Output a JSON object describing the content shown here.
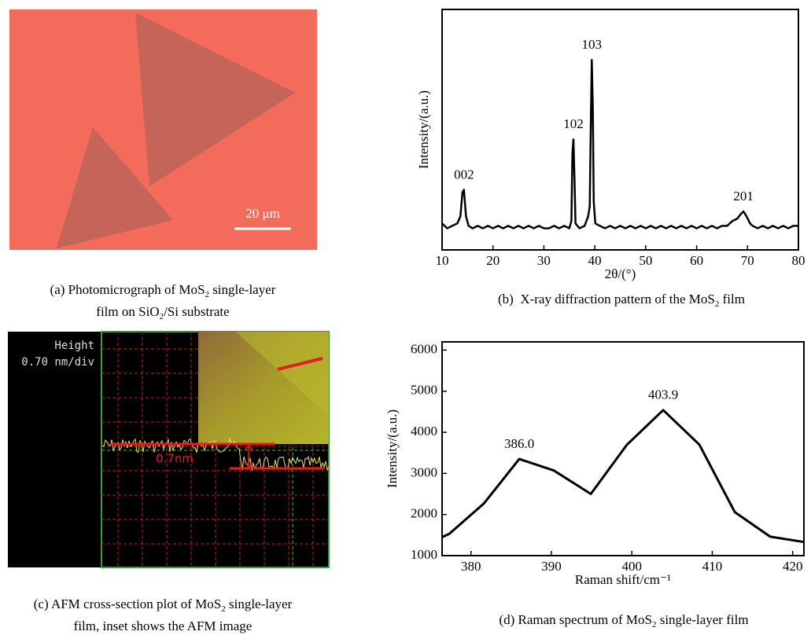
{
  "panel_a": {
    "scale_bar": "20 μm",
    "caption": [
      [
        "(a) Photomicrograph of MoS",
        "2",
        " single-layer"
      ],
      [
        "film on SiO",
        "2",
        "/Si substrate"
      ]
    ]
  },
  "panel_c": {
    "height_label": "Height",
    "scale_label": "0.70 nm/div",
    "step_label": "0.7nm",
    "caption": [
      [
        "(c) AFM cross-section plot of MoS",
        "2",
        " single-layer"
      ],
      [
        "film, inset shows the AFM image"
      ]
    ]
  },
  "chart_data": [
    {
      "type": "line",
      "color": "#000000",
      "xlabel": "2θ/(°)",
      "ylabel": "Intensity/(a.u.)",
      "x": [
        10,
        11,
        12,
        13,
        13.6,
        14.0,
        14.3,
        14.7,
        15.2,
        16,
        17,
        18,
        19,
        20,
        21,
        22,
        23,
        24,
        25,
        26,
        27,
        28,
        29,
        30,
        31,
        32,
        33,
        34,
        35,
        35.4,
        35.6,
        35.8,
        36.0,
        36.2,
        37,
        38,
        38.7,
        39.0,
        39.2,
        39.4,
        39.6,
        39.8,
        40.1,
        41,
        42,
        43,
        44,
        45,
        46,
        47,
        48,
        49,
        50,
        51,
        52,
        53,
        54,
        55,
        56,
        57,
        58,
        59,
        60,
        61,
        62,
        63,
        64,
        65,
        66,
        67,
        68,
        68.7,
        69.2,
        69.8,
        70.5,
        71,
        72,
        73,
        74,
        75,
        76,
        77,
        78,
        79,
        80
      ],
      "values": [
        11,
        9,
        10,
        11,
        14,
        24,
        25,
        14,
        10,
        9,
        10,
        9,
        10,
        9,
        10,
        9,
        10,
        9,
        10,
        9,
        10,
        9,
        10,
        9,
        9,
        10,
        9,
        10,
        9,
        12,
        40,
        46,
        30,
        11,
        9,
        10,
        14,
        18,
        50,
        79,
        60,
        20,
        11,
        10,
        9,
        10,
        9,
        10,
        9,
        10,
        9,
        10,
        9,
        10,
        9,
        10,
        9,
        10,
        9,
        10,
        9,
        10,
        9,
        10,
        9,
        10,
        9,
        10,
        10,
        12,
        13,
        15,
        16,
        14,
        11,
        10,
        9,
        10,
        9,
        10,
        9,
        10,
        9,
        10,
        10
      ],
      "xlim": [
        10,
        80
      ],
      "xticks": [
        10,
        20,
        30,
        40,
        50,
        60,
        70,
        80
      ],
      "ylim": [
        0,
        100
      ],
      "annotations": [
        {
          "text": "002",
          "x": 14.3
        },
        {
          "text": "102",
          "x": 35.8
        },
        {
          "text": "103",
          "x": 39.4
        },
        {
          "text": "201",
          "x": 69.2
        }
      ],
      "caption": [
        [
          "(b)  X-ray diffraction pattern of the MoS",
          "2",
          " film"
        ]
      ]
    },
    {
      "type": "line",
      "color": "#000000",
      "xlabel": "Raman shift/cm⁻¹",
      "ylabel": "Intensity/(a.u.)",
      "x": [
        376.4,
        377.3,
        381.6,
        386.0,
        390.3,
        394.9,
        399.4,
        403.9,
        408.4,
        412.8,
        417.2,
        421.4
      ],
      "values": [
        1450,
        1530,
        2270,
        3350,
        3070,
        2500,
        3700,
        4540,
        3700,
        2060,
        1460,
        1330
      ],
      "xlim": [
        376.4,
        421.4
      ],
      "xticks": [
        380,
        390,
        400,
        410,
        420
      ],
      "ylim": [
        1000,
        6200
      ],
      "yticks": [
        1000,
        2000,
        3000,
        4000,
        5000,
        6000
      ],
      "annotations": [
        {
          "text": "386.0",
          "x": 386.0
        },
        {
          "text": "403.9",
          "x": 403.9
        }
      ],
      "caption": [
        [
          "(d) Raman spectrum of MoS",
          "2",
          " single-layer film"
        ]
      ]
    }
  ]
}
